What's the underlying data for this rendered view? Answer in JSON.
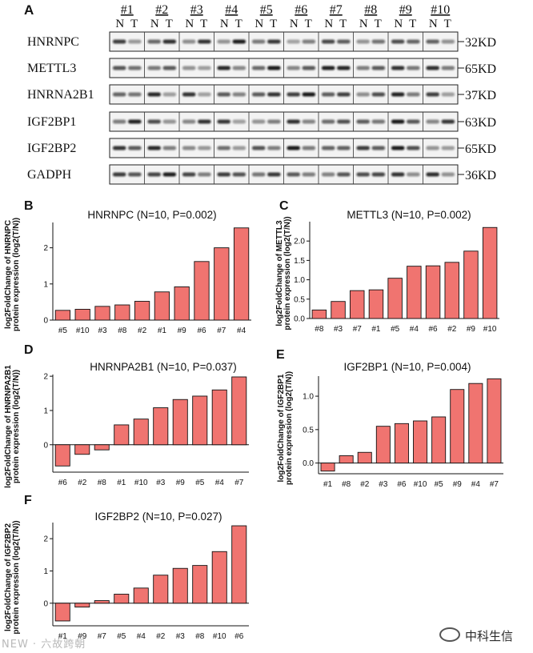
{
  "western_blot": {
    "panel_label": "A",
    "samples": [
      "#1",
      "#2",
      "#3",
      "#4",
      "#5",
      "#6",
      "#7",
      "#8",
      "#9",
      "#10"
    ],
    "lane_labels": [
      "N",
      "T"
    ],
    "rows": [
      {
        "protein": "HNRNPC",
        "size": "32KD"
      },
      {
        "protein": "METTL3",
        "size": "65KD"
      },
      {
        "protein": "HNRNA2B1",
        "size": "37KD"
      },
      {
        "protein": "IGF2BP1",
        "size": "63KD"
      },
      {
        "protein": "IGF2BP2",
        "size": "65KD"
      },
      {
        "protein": "GADPH",
        "size": "36KD"
      }
    ]
  },
  "chart_data": [
    {
      "panel": "B",
      "type": "bar",
      "title": "HNRNPC (N=10, P=0.002)",
      "ylabel": "log2FoldChange of HNRNPC protein expression (log2(T/N))",
      "categories": [
        "#5",
        "#10",
        "#3",
        "#8",
        "#2",
        "#1",
        "#9",
        "#6",
        "#7",
        "#4"
      ],
      "values": [
        0.27,
        0.3,
        0.38,
        0.42,
        0.52,
        0.78,
        0.92,
        1.62,
        2.0,
        2.55
      ],
      "ylim": [
        0,
        2.7
      ],
      "yticks": [
        0,
        1,
        2
      ],
      "color": "#f07470"
    },
    {
      "panel": "C",
      "type": "bar",
      "title": "METTL3 (N=10, P=0.002)",
      "ylabel": "log2FoldChange of METTL3 protein expression (log2(T/N))",
      "categories": [
        "#8",
        "#3",
        "#7",
        "#1",
        "#5",
        "#4",
        "#6",
        "#2",
        "#9",
        "#10"
      ],
      "values": [
        0.22,
        0.44,
        0.72,
        0.74,
        1.04,
        1.35,
        1.36,
        1.45,
        1.74,
        2.35
      ],
      "ylim": [
        0,
        2.5
      ],
      "yticks": [
        0.0,
        0.5,
        1.0,
        1.5,
        2.0
      ],
      "color": "#f07470"
    },
    {
      "panel": "D",
      "type": "bar",
      "title": "HNRNPA2B1 (N=10, P=0.037)",
      "ylabel": "log2FoldChange of HNRNPA2B1 protein expression (log2(T/N))",
      "categories": [
        "#6",
        "#2",
        "#8",
        "#1",
        "#10",
        "#3",
        "#9",
        "#5",
        "#4",
        "#7"
      ],
      "values": [
        -0.62,
        -0.28,
        -0.15,
        0.58,
        0.75,
        1.08,
        1.32,
        1.42,
        1.6,
        1.98
      ],
      "ylim": [
        -0.8,
        2.05
      ],
      "yticks": [
        0,
        1,
        2
      ],
      "color": "#f07470"
    },
    {
      "panel": "E",
      "type": "bar",
      "title": "IGF2BP1 (N=10, P=0.004)",
      "ylabel": "log2FoldChange of IGF2BP1 protein expression (log2(T/N))",
      "categories": [
        "#1",
        "#8",
        "#2",
        "#3",
        "#6",
        "#10",
        "#5",
        "#9",
        "#4",
        "#7"
      ],
      "values": [
        -0.12,
        0.11,
        0.16,
        0.55,
        0.59,
        0.63,
        0.69,
        1.1,
        1.19,
        1.26
      ],
      "ylim": [
        -0.16,
        1.3
      ],
      "yticks": [
        0.0,
        0.5,
        1.0
      ],
      "color": "#f07470"
    },
    {
      "panel": "F",
      "type": "bar",
      "title": "IGF2BP2 (N=10, P=0.027)",
      "ylabel": "log2FoldChange of IGF2BP2 protein expression (log2(T/N))",
      "categories": [
        "#1",
        "#9",
        "#7",
        "#5",
        "#4",
        "#2",
        "#3",
        "#8",
        "#10",
        "#6"
      ],
      "values": [
        -0.55,
        -0.12,
        0.08,
        0.28,
        0.47,
        0.87,
        1.08,
        1.17,
        1.6,
        2.4
      ],
      "ylim": [
        -0.7,
        2.5
      ],
      "yticks": [
        0,
        1,
        2
      ],
      "color": "#f07470"
    }
  ],
  "watermarks": {
    "left": "NEW · 六故跨朝",
    "right": "中科生信"
  }
}
